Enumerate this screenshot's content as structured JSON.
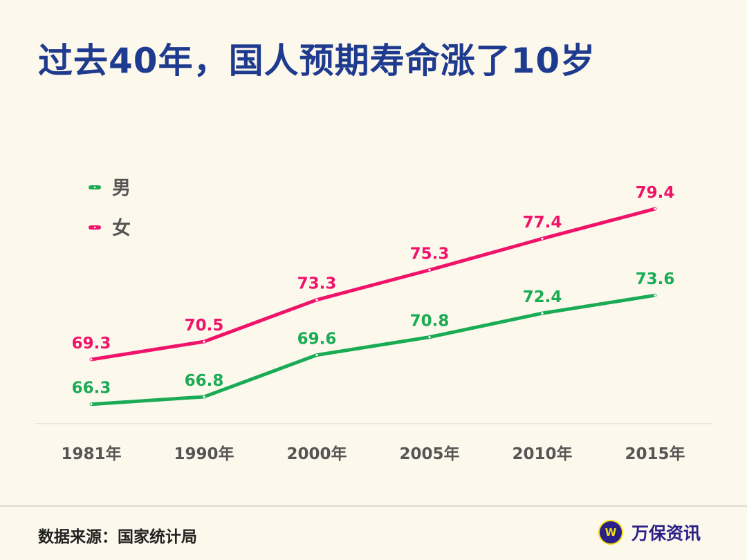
{
  "title": "过去40年，国人预期寿命涨了10岁",
  "footer": {
    "source": "数据来源：国家统计局",
    "brand": "万保资讯"
  },
  "chart_data": {
    "type": "line",
    "categories": [
      "1981年",
      "1990年",
      "2000年",
      "2005年",
      "2010年",
      "2015年"
    ],
    "series": [
      {
        "name": "男",
        "color": "#1aab55",
        "values": [
          66.3,
          66.8,
          69.6,
          70.8,
          72.4,
          73.6
        ]
      },
      {
        "name": "女",
        "color": "#f0136a",
        "values": [
          69.3,
          70.5,
          73.3,
          75.3,
          77.4,
          79.4
        ]
      }
    ],
    "ylim": [
      65,
      80
    ],
    "grid": false,
    "legend": "top-left",
    "data_labels": true
  }
}
